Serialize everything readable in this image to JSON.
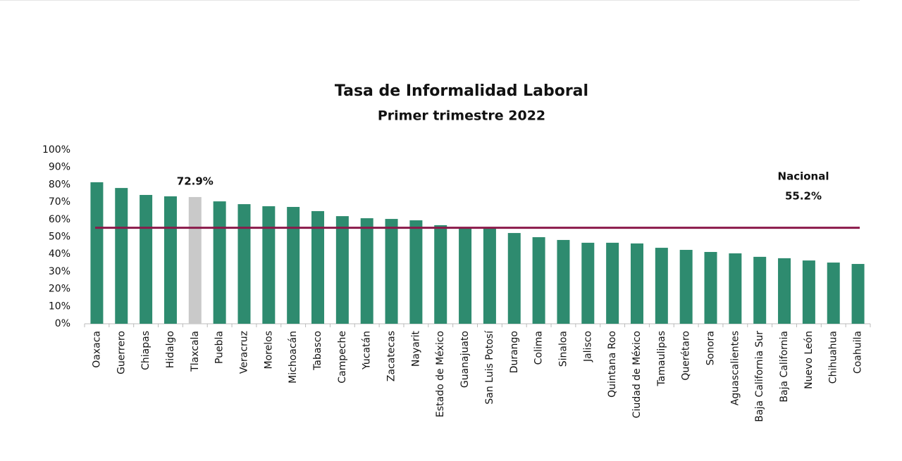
{
  "chart_data": {
    "type": "bar",
    "title": "Tasa de Informalidad Laboral",
    "subtitle": "Primer trimestre 2022",
    "categories": [
      "Oaxaca",
      "Guerrero",
      "Chiapas",
      "Hidalgo",
      "Tlaxcala",
      "Puebla",
      "Veracruz",
      "Morelos",
      "Michoacán",
      "Tabasco",
      "Campeche",
      "Yucatán",
      "Zacatecas",
      "Nayarit",
      "Estado de México",
      "Guanajuato",
      "San Luis Potosí",
      "Durango",
      "Colima",
      "Sinaloa",
      "Jalisco",
      "Quintana Roo",
      "Ciudad de México",
      "Tamaulipas",
      "Querétaro",
      "Sonora",
      "Aguascalientes",
      "Baja California Sur",
      "Baja California",
      "Nuevo León",
      "Chihuahua",
      "Coahuila"
    ],
    "values": [
      81.4,
      78.1,
      74.1,
      73.3,
      72.9,
      70.4,
      68.8,
      67.6,
      67.2,
      64.8,
      61.9,
      60.7,
      60.3,
      59.5,
      56.7,
      55.5,
      54.7,
      52.2,
      49.8,
      48.2,
      46.6,
      46.6,
      46.2,
      43.7,
      42.5,
      41.3,
      40.5,
      38.5,
      37.7,
      36.4,
      35.2,
      34.4
    ],
    "value_labels": [
      null,
      null,
      null,
      null,
      "72.9%",
      null,
      null,
      null,
      null,
      null,
      null,
      null,
      null,
      null,
      null,
      null,
      null,
      null,
      null,
      null,
      null,
      null,
      null,
      null,
      null,
      null,
      null,
      null,
      null,
      null,
      null,
      null
    ],
    "colors": [
      "#2e8b6f",
      "#2e8b6f",
      "#2e8b6f",
      "#2e8b6f",
      "#c9c9c9",
      "#2e8b6f",
      "#2e8b6f",
      "#2e8b6f",
      "#2e8b6f",
      "#2e8b6f",
      "#2e8b6f",
      "#2e8b6f",
      "#2e8b6f",
      "#2e8b6f",
      "#2e8b6f",
      "#2e8b6f",
      "#2e8b6f",
      "#2e8b6f",
      "#2e8b6f",
      "#2e8b6f",
      "#2e8b6f",
      "#2e8b6f",
      "#2e8b6f",
      "#2e8b6f",
      "#2e8b6f",
      "#2e8b6f",
      "#2e8b6f",
      "#2e8b6f",
      "#2e8b6f",
      "#2e8b6f",
      "#2e8b6f",
      "#2e8b6f"
    ],
    "reference_line": {
      "name": "Nacional",
      "value": 55.2,
      "label": "55.2%",
      "color": "#8b1a4a"
    },
    "ylim": [
      0,
      100
    ],
    "yticks": [
      {
        "value": 0,
        "label": "0%"
      },
      {
        "value": 10,
        "label": "10%"
      },
      {
        "value": 20,
        "label": "20%"
      },
      {
        "value": 30,
        "label": "30%"
      },
      {
        "value": 40,
        "label": "40%"
      },
      {
        "value": 50,
        "label": "50%"
      },
      {
        "value": 60,
        "label": "60%"
      },
      {
        "value": 70,
        "label": "70%"
      },
      {
        "value": 80,
        "label": "80%"
      },
      {
        "value": 90,
        "label": "90%"
      },
      {
        "value": 100,
        "label": "100%"
      }
    ],
    "grid": false
  }
}
